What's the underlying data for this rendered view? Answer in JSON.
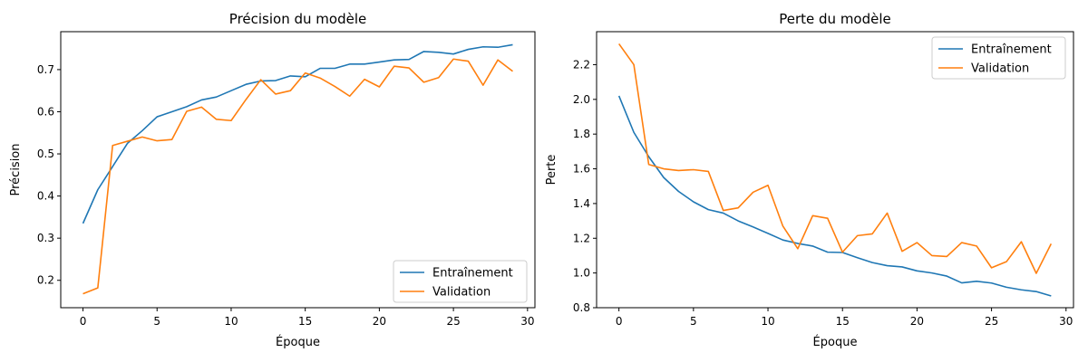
{
  "chart_data": [
    {
      "type": "line",
      "title": "Précision du modèle",
      "xlabel": "Époque",
      "ylabel": "Précision",
      "xlim": [
        -1.5,
        30.5
      ],
      "ylim": [
        0.135,
        0.79
      ],
      "xticks": [
        0,
        5,
        10,
        15,
        20,
        25,
        30
      ],
      "yticks": [
        0.2,
        0.3,
        0.4,
        0.5,
        0.6,
        0.7
      ],
      "ytick_decimals": 1,
      "legend_position": "lower-right",
      "grid": false,
      "x": [
        0,
        1,
        2,
        3,
        4,
        5,
        6,
        7,
        8,
        9,
        10,
        11,
        12,
        13,
        14,
        15,
        16,
        17,
        18,
        19,
        20,
        21,
        22,
        23,
        24,
        25,
        26,
        27,
        28,
        29
      ],
      "series": [
        {
          "name": "Entraînement",
          "color": "#1f77b4",
          "values": [
            0.335,
            0.415,
            0.47,
            0.525,
            0.555,
            0.588,
            0.6,
            0.612,
            0.628,
            0.635,
            0.65,
            0.665,
            0.673,
            0.674,
            0.685,
            0.683,
            0.703,
            0.703,
            0.713,
            0.713,
            0.718,
            0.723,
            0.724,
            0.743,
            0.741,
            0.737,
            0.748,
            0.754,
            0.753,
            0.759
          ]
        },
        {
          "name": "Validation",
          "color": "#ff7f0e",
          "values": [
            0.168,
            0.182,
            0.52,
            0.53,
            0.54,
            0.531,
            0.534,
            0.601,
            0.611,
            0.582,
            0.579,
            0.629,
            0.676,
            0.642,
            0.65,
            0.692,
            0.68,
            0.66,
            0.637,
            0.677,
            0.659,
            0.708,
            0.704,
            0.67,
            0.681,
            0.725,
            0.72,
            0.663,
            0.723,
            0.696
          ]
        }
      ]
    },
    {
      "type": "line",
      "title": "Perte du modèle",
      "xlabel": "Époque",
      "ylabel": "Perte",
      "xlim": [
        -1.5,
        30.5
      ],
      "ylim": [
        0.8,
        2.39
      ],
      "xticks": [
        0,
        5,
        10,
        15,
        20,
        25,
        30
      ],
      "yticks": [
        0.8,
        1.0,
        1.2,
        1.4,
        1.6,
        1.8,
        2.0,
        2.2
      ],
      "ytick_decimals": 1,
      "legend_position": "upper-right",
      "grid": false,
      "x": [
        0,
        1,
        2,
        3,
        4,
        5,
        6,
        7,
        8,
        9,
        10,
        11,
        12,
        13,
        14,
        15,
        16,
        17,
        18,
        19,
        20,
        21,
        22,
        23,
        24,
        25,
        26,
        27,
        28,
        29
      ],
      "series": [
        {
          "name": "Entraînement",
          "color": "#1f77b4",
          "values": [
            2.02,
            1.81,
            1.67,
            1.55,
            1.47,
            1.41,
            1.365,
            1.345,
            1.3,
            1.265,
            1.228,
            1.19,
            1.17,
            1.155,
            1.12,
            1.118,
            1.088,
            1.06,
            1.042,
            1.035,
            1.012,
            1.0,
            0.982,
            0.943,
            0.952,
            0.942,
            0.918,
            0.903,
            0.893,
            0.868
          ]
        },
        {
          "name": "Validation",
          "color": "#ff7f0e",
          "values": [
            2.32,
            2.2,
            1.625,
            1.6,
            1.59,
            1.595,
            1.585,
            1.36,
            1.375,
            1.465,
            1.505,
            1.27,
            1.14,
            1.33,
            1.315,
            1.12,
            1.215,
            1.225,
            1.345,
            1.125,
            1.175,
            1.1,
            1.095,
            1.175,
            1.155,
            1.03,
            1.065,
            1.18,
            0.998,
            1.168
          ]
        }
      ]
    }
  ]
}
